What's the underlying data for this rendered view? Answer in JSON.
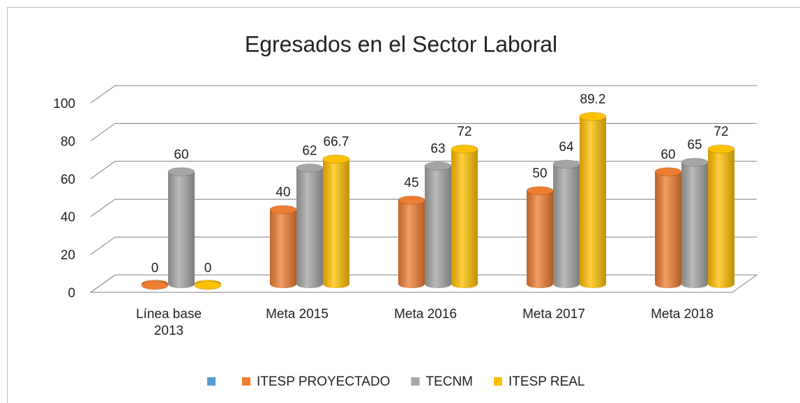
{
  "chart_data": {
    "type": "bar3d",
    "title": "Egresados en el Sector Laboral",
    "categories": [
      "Línea base 2013",
      "Meta 2015",
      "Meta 2016",
      "Meta 2017",
      "Meta 2018"
    ],
    "series": [
      {
        "name": "ITESP PROYECTADO",
        "color": "#ed7d31",
        "values": [
          0,
          40,
          45,
          50,
          60
        ]
      },
      {
        "name": "TECNM",
        "color": "#a5a5a5",
        "values": [
          60,
          62,
          63,
          64,
          65
        ]
      },
      {
        "name": "ITESP REAL",
        "color": "#ffc000",
        "values": [
          0,
          66.7,
          72,
          89.2,
          72
        ]
      }
    ],
    "ylim": [
      0,
      100
    ],
    "yticks": [
      0,
      20,
      40,
      60,
      80,
      100
    ],
    "grid": true,
    "legend": "bottom"
  }
}
